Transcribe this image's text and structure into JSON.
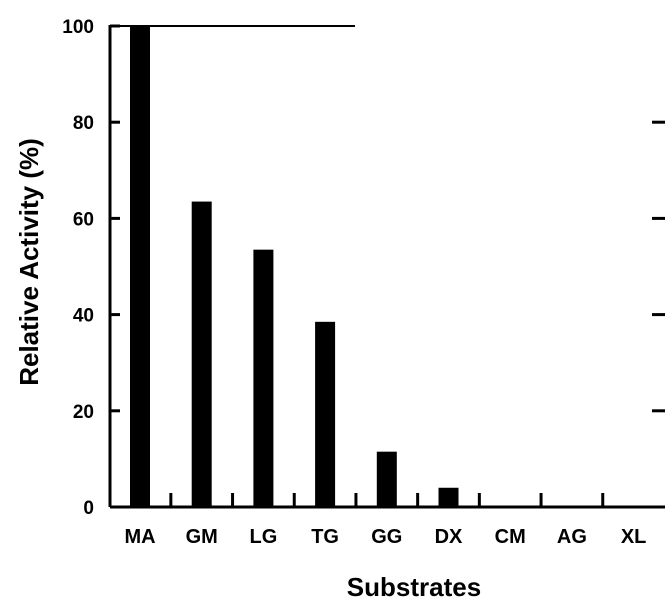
{
  "chart_data": {
    "type": "bar",
    "title": "",
    "xlabel": "Substrates",
    "ylabel": "Relative Activity (%)",
    "categories": [
      "MA",
      "GM",
      "LG",
      "TG",
      "GG",
      "DX",
      "CM",
      "AG",
      "XL"
    ],
    "values": [
      100,
      63.5,
      53.5,
      38.5,
      11.5,
      4,
      0,
      0,
      0
    ],
    "ylim": [
      0,
      100
    ],
    "yticks": [
      "0",
      "20",
      "40",
      "60",
      "80",
      "100"
    ],
    "grid": false,
    "legend": "none",
    "bar_color": "#000000"
  }
}
